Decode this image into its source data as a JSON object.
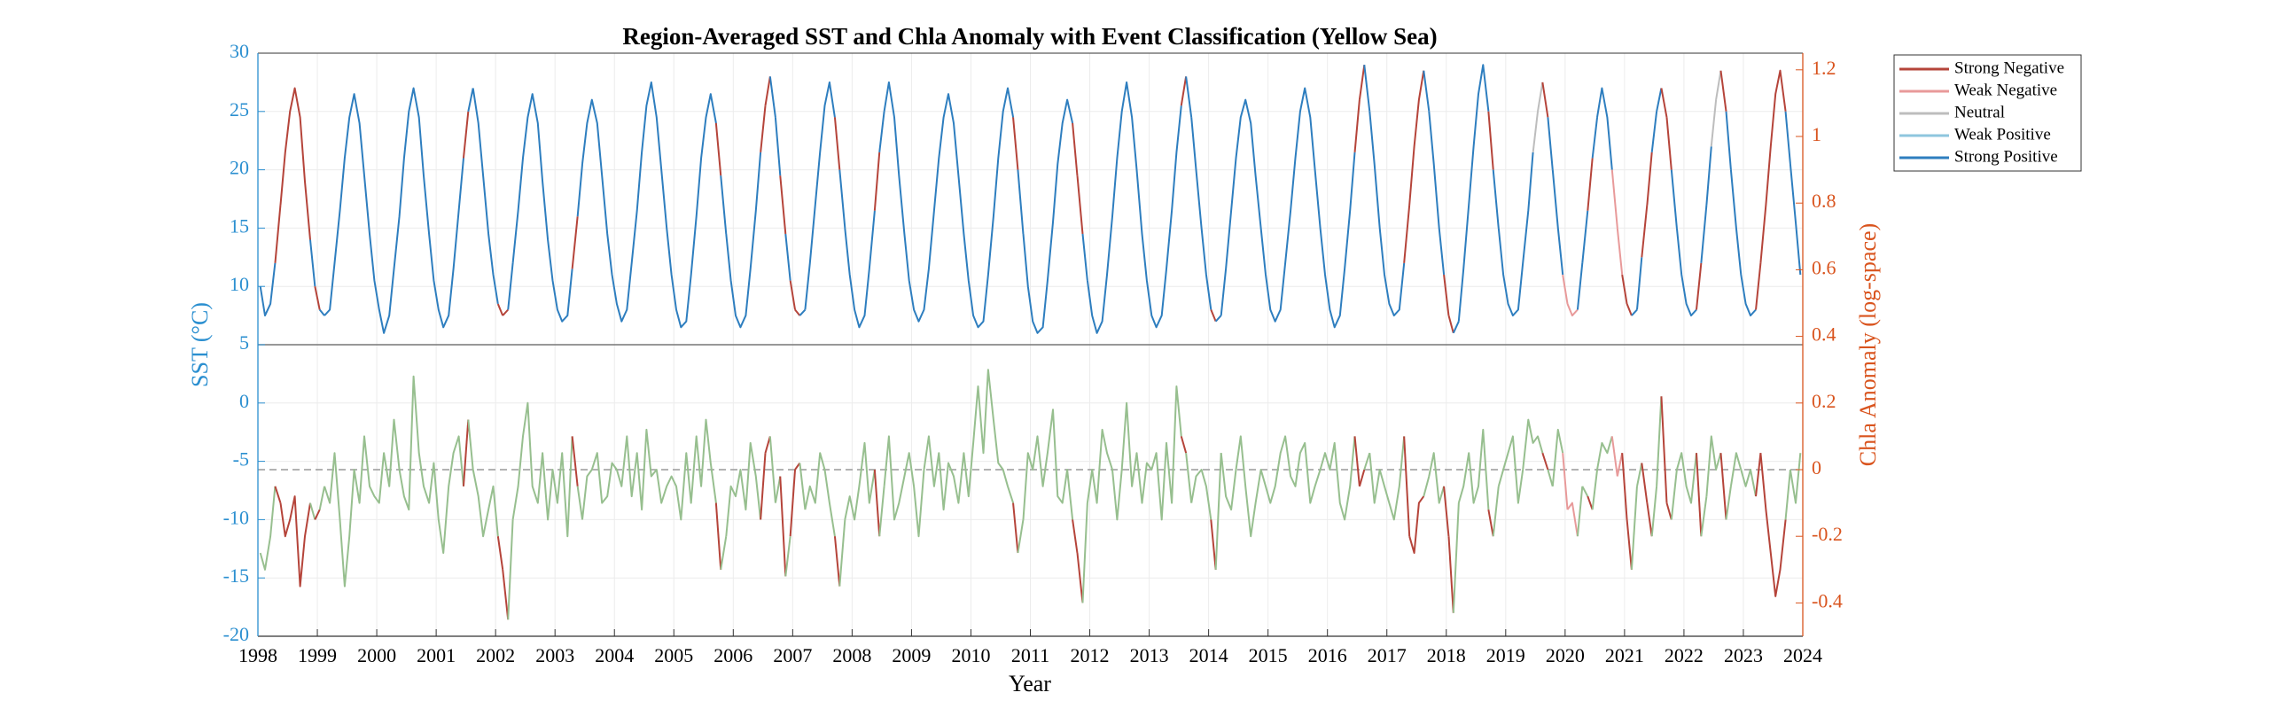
{
  "chart_data": {
    "type": "line",
    "title": "Region-Averaged SST and Chla Anomaly with Event Classification (Yellow Sea)",
    "x_label": "Year",
    "y_label": "SST (°C)",
    "y2_label": "Chla Anomaly (log-space)",
    "xlim": [
      1998,
      2024
    ],
    "xticks": [
      1998,
      1999,
      2000,
      2001,
      2002,
      2003,
      2004,
      2005,
      2006,
      2007,
      2008,
      2009,
      2010,
      2011,
      2012,
      2013,
      2014,
      2015,
      2016,
      2017,
      2018,
      2019,
      2020,
      2021,
      2022,
      2023,
      2024
    ],
    "ylim": [
      -20,
      30
    ],
    "yticks": [
      -20,
      -15,
      -10,
      -5,
      0,
      5,
      10,
      15,
      20,
      25,
      30
    ],
    "y2lim": [
      -0.5,
      1.25
    ],
    "y2ticks": [
      -0.4,
      -0.2,
      0,
      0.2,
      0.4,
      0.6,
      0.8,
      1,
      1.2
    ],
    "grid": true,
    "legend_position": "outside-right",
    "y2_reference": 0,
    "panel_divider": 5,
    "legend": [
      {
        "name": "Strong Negative",
        "color": "#b5443a"
      },
      {
        "name": "Weak Negative",
        "color": "#e89a9a"
      },
      {
        "name": "Neutral",
        "color": "#bdbdbd"
      },
      {
        "name": "Weak Positive",
        "color": "#8ec6de"
      },
      {
        "name": "Strong Positive",
        "color": "#2e7ebf"
      }
    ],
    "x": [
      1998.04,
      1998.12,
      1998.21,
      1998.29,
      1998.38,
      1998.46,
      1998.54,
      1998.62,
      1998.71,
      1998.79,
      1998.88,
      1998.96,
      1999.04,
      1999.12,
      1999.21,
      1999.29,
      1999.38,
      1999.46,
      1999.54,
      1999.62,
      1999.71,
      1999.79,
      1999.88,
      1999.96,
      2000.04,
      2000.12,
      2000.21,
      2000.29,
      2000.38,
      2000.46,
      2000.54,
      2000.62,
      2000.71,
      2000.79,
      2000.88,
      2000.96,
      2001.04,
      2001.12,
      2001.21,
      2001.29,
      2001.38,
      2001.46,
      2001.54,
      2001.62,
      2001.71,
      2001.79,
      2001.88,
      2001.96,
      2002.04,
      2002.12,
      2002.21,
      2002.29,
      2002.38,
      2002.46,
      2002.54,
      2002.62,
      2002.71,
      2002.79,
      2002.88,
      2002.96,
      2003.04,
      2003.12,
      2003.21,
      2003.29,
      2003.38,
      2003.46,
      2003.54,
      2003.62,
      2003.71,
      2003.79,
      2003.88,
      2003.96,
      2004.04,
      2004.12,
      2004.21,
      2004.29,
      2004.38,
      2004.46,
      2004.54,
      2004.62,
      2004.71,
      2004.79,
      2004.88,
      2004.96,
      2005.04,
      2005.12,
      2005.21,
      2005.29,
      2005.38,
      2005.46,
      2005.54,
      2005.62,
      2005.71,
      2005.79,
      2005.88,
      2005.96,
      2006.04,
      2006.12,
      2006.21,
      2006.29,
      2006.38,
      2006.46,
      2006.54,
      2006.62,
      2006.71,
      2006.79,
      2006.88,
      2006.96,
      2007.04,
      2007.12,
      2007.21,
      2007.29,
      2007.38,
      2007.46,
      2007.54,
      2007.62,
      2007.71,
      2007.79,
      2007.88,
      2007.96,
      2008.04,
      2008.12,
      2008.21,
      2008.29,
      2008.38,
      2008.46,
      2008.54,
      2008.62,
      2008.71,
      2008.79,
      2008.88,
      2008.96,
      2009.04,
      2009.12,
      2009.21,
      2009.29,
      2009.38,
      2009.46,
      2009.54,
      2009.62,
      2009.71,
      2009.79,
      2009.88,
      2009.96,
      2010.04,
      2010.12,
      2010.21,
      2010.29,
      2010.38,
      2010.46,
      2010.54,
      2010.62,
      2010.71,
      2010.79,
      2010.88,
      2010.96,
      2011.04,
      2011.12,
      2011.21,
      2011.29,
      2011.38,
      2011.46,
      2011.54,
      2011.62,
      2011.71,
      2011.79,
      2011.88,
      2011.96,
      2012.04,
      2012.12,
      2012.21,
      2012.29,
      2012.38,
      2012.46,
      2012.54,
      2012.62,
      2012.71,
      2012.79,
      2012.88,
      2012.96,
      2013.04,
      2013.12,
      2013.21,
      2013.29,
      2013.38,
      2013.46,
      2013.54,
      2013.62,
      2013.71,
      2013.79,
      2013.88,
      2013.96,
      2014.04,
      2014.12,
      2014.21,
      2014.29,
      2014.38,
      2014.46,
      2014.54,
      2014.62,
      2014.71,
      2014.79,
      2014.88,
      2014.96,
      2015.04,
      2015.12,
      2015.21,
      2015.29,
      2015.38,
      2015.46,
      2015.54,
      2015.62,
      2015.71,
      2015.79,
      2015.88,
      2015.96,
      2016.04,
      2016.12,
      2016.21,
      2016.29,
      2016.38,
      2016.46,
      2016.54,
      2016.62,
      2016.71,
      2016.79,
      2016.88,
      2016.96,
      2017.04,
      2017.12,
      2017.21,
      2017.29,
      2017.38,
      2017.46,
      2017.54,
      2017.62,
      2017.71,
      2017.79,
      2017.88,
      2017.96,
      2018.04,
      2018.12,
      2018.21,
      2018.29,
      2018.38,
      2018.46,
      2018.54,
      2018.62,
      2018.71,
      2018.79,
      2018.88,
      2018.96,
      2019.04,
      2019.12,
      2019.21,
      2019.29,
      2019.38,
      2019.46,
      2019.54,
      2019.62,
      2019.71,
      2019.79,
      2019.88,
      2019.96,
      2020.04,
      2020.12,
      2020.21,
      2020.29,
      2020.38,
      2020.46,
      2020.54,
      2020.62,
      2020.71,
      2020.79,
      2020.88,
      2020.96,
      2021.04,
      2021.12,
      2021.21,
      2021.29,
      2021.38,
      2021.46,
      2021.54,
      2021.62,
      2021.71,
      2021.79,
      2021.88,
      2021.96,
      2022.04,
      2022.12,
      2022.21,
      2022.29,
      2022.38,
      2022.46,
      2022.54,
      2022.62,
      2022.71,
      2022.79,
      2022.88,
      2022.96,
      2023.04,
      2023.12,
      2023.21,
      2023.29,
      2023.38,
      2023.46,
      2023.54,
      2023.62,
      2023.71,
      2023.79,
      2023.88,
      2023.96
    ],
    "event_class": [
      4,
      4,
      4,
      4,
      0,
      0,
      0,
      0,
      0,
      0,
      0,
      4,
      0,
      4,
      4,
      4,
      4,
      4,
      4,
      4,
      4,
      4,
      4,
      4,
      4,
      4,
      4,
      4,
      4,
      4,
      4,
      4,
      4,
      4,
      4,
      4,
      4,
      4,
      4,
      4,
      4,
      4,
      0,
      4,
      4,
      4,
      4,
      4,
      4,
      0,
      0,
      4,
      4,
      4,
      4,
      4,
      4,
      4,
      4,
      4,
      4,
      4,
      4,
      4,
      0,
      4,
      4,
      4,
      4,
      4,
      4,
      4,
      4,
      4,
      4,
      4,
      4,
      4,
      4,
      4,
      4,
      4,
      4,
      4,
      4,
      4,
      4,
      4,
      4,
      4,
      4,
      4,
      4,
      0,
      4,
      4,
      4,
      4,
      4,
      4,
      4,
      4,
      0,
      0,
      4,
      4,
      0,
      4,
      0,
      0,
      4,
      4,
      4,
      4,
      4,
      4,
      4,
      0,
      4,
      4,
      4,
      4,
      4,
      4,
      4,
      0,
      4,
      4,
      4,
      4,
      4,
      4,
      4,
      4,
      4,
      4,
      4,
      4,
      4,
      4,
      4,
      4,
      4,
      4,
      4,
      4,
      4,
      4,
      4,
      4,
      4,
      4,
      4,
      0,
      4,
      4,
      4,
      4,
      4,
      4,
      4,
      4,
      4,
      4,
      4,
      0,
      0,
      4,
      4,
      4,
      4,
      4,
      4,
      4,
      4,
      4,
      4,
      4,
      4,
      4,
      4,
      4,
      4,
      4,
      4,
      4,
      4,
      0,
      4,
      4,
      4,
      4,
      4,
      0,
      4,
      4,
      4,
      4,
      4,
      4,
      4,
      4,
      4,
      4,
      4,
      4,
      4,
      4,
      4,
      4,
      4,
      4,
      4,
      4,
      4,
      4,
      4,
      4,
      4,
      4,
      4,
      4,
      0,
      0,
      4,
      4,
      4,
      4,
      4,
      4,
      4,
      4,
      0,
      0,
      0,
      0,
      4,
      4,
      4,
      4,
      0,
      0,
      4,
      4,
      4,
      4,
      4,
      4,
      4,
      0,
      4,
      4,
      4,
      4,
      4,
      4,
      4,
      4,
      2,
      2,
      0,
      4,
      4,
      4,
      1,
      1,
      1,
      4,
      4,
      0,
      4,
      4,
      4,
      4,
      1,
      1,
      0,
      0,
      4,
      4,
      0,
      0,
      4,
      4,
      0,
      0,
      4,
      4,
      4,
      4,
      4,
      0,
      4,
      4,
      2,
      2,
      0,
      4,
      4,
      4,
      4,
      4,
      4,
      0,
      0,
      0,
      0,
      0,
      0,
      4,
      4,
      4
    ],
    "series": [
      {
        "color": "#2e7ebf",
        "axis": "y",
        "class_colored": [
          0,
          1,
          2,
          3,
          4
        ],
        "values": [
          10,
          7.5,
          8.5,
          12,
          17,
          21.5,
          25,
          27,
          24.5,
          19,
          14,
          10,
          8,
          7.5,
          8,
          12,
          16.5,
          21,
          24.5,
          26.5,
          24,
          19.5,
          14.5,
          10.5,
          8,
          6,
          7.5,
          11.5,
          16,
          21,
          25,
          27,
          24.5,
          19.5,
          14.5,
          10.5,
          8,
          6.5,
          7.5,
          11.5,
          16.5,
          21,
          25,
          27,
          24,
          19.5,
          14.5,
          11,
          8.5,
          7.5,
          8,
          12,
          16.5,
          21,
          24.5,
          26.5,
          24,
          19,
          14,
          10.5,
          8,
          7,
          7.5,
          11.5,
          16,
          20.5,
          24,
          26,
          24,
          19.5,
          14.5,
          11,
          8.5,
          7,
          8,
          12,
          16.5,
          21.5,
          25.5,
          27.5,
          24.5,
          20,
          15,
          11,
          8,
          6.5,
          7,
          11,
          16,
          21,
          24.5,
          26.5,
          24,
          19.5,
          14.5,
          10.5,
          7.5,
          6.5,
          7.5,
          11.5,
          16.5,
          21.5,
          25.5,
          28,
          24.5,
          19.5,
          14.5,
          10.5,
          8,
          7.5,
          8,
          12,
          17,
          21.5,
          25.5,
          27.5,
          24.5,
          20,
          15,
          11,
          8,
          6.5,
          7.5,
          11.5,
          16.5,
          21.5,
          25,
          27.5,
          24.5,
          19.5,
          14.5,
          10.5,
          8,
          7,
          8,
          11.5,
          16.5,
          21,
          24.5,
          26.5,
          24,
          19.5,
          14.5,
          10.5,
          7.5,
          6.5,
          7,
          11,
          16,
          21,
          25,
          27,
          24.5,
          20,
          14.5,
          10,
          7,
          6,
          6.5,
          10.5,
          15.5,
          20.5,
          24,
          26,
          24,
          19.5,
          14.5,
          10.5,
          7.5,
          6,
          7,
          11,
          16,
          21,
          25,
          27.5,
          24.5,
          20,
          14.5,
          10.5,
          7.5,
          6.5,
          7.5,
          11.5,
          16.5,
          21.5,
          25.5,
          28,
          24.5,
          20,
          15,
          11,
          8,
          7,
          7.5,
          11.5,
          16.5,
          21,
          24.5,
          26,
          24,
          19.5,
          15,
          11,
          8,
          7,
          8,
          12,
          16.5,
          21,
          25,
          27,
          24.5,
          20,
          15,
          11,
          8,
          6.5,
          7.5,
          11.5,
          16.5,
          21.5,
          26,
          29,
          25,
          20.5,
          15,
          11,
          8.5,
          7.5,
          8,
          12,
          17,
          22,
          26,
          28.5,
          25,
          20.5,
          15,
          11,
          7.5,
          6,
          7,
          11.5,
          17,
          22,
          26.5,
          29,
          25,
          20,
          15,
          11,
          8.5,
          7.5,
          8,
          12,
          16.5,
          21.5,
          25,
          27.5,
          24.5,
          20,
          15,
          11,
          8.5,
          7.5,
          8,
          12,
          16.5,
          21,
          24.5,
          27,
          24.5,
          20,
          15,
          11,
          8.5,
          7.5,
          8,
          12.5,
          17,
          21.5,
          25,
          27,
          24.5,
          20,
          15,
          11,
          8.5,
          7.5,
          8,
          12,
          17,
          22,
          26,
          28.5,
          25,
          20,
          15,
          11,
          8.5,
          7.5,
          8,
          12,
          17,
          22,
          26.5,
          28.5,
          25,
          20.5,
          15.5,
          11
        ]
      },
      {
        "color": "#97bf8f",
        "axis": "y2",
        "class_colored": [
          0,
          1
        ],
        "values": [
          -0.25,
          -0.3,
          -0.2,
          -0.05,
          -0.1,
          -0.2,
          -0.15,
          -0.08,
          -0.35,
          -0.2,
          -0.1,
          -0.15,
          -0.12,
          -0.05,
          -0.1,
          0.05,
          -0.15,
          -0.35,
          -0.2,
          0,
          -0.1,
          0.1,
          -0.05,
          -0.08,
          -0.1,
          0.05,
          -0.05,
          0.15,
          0,
          -0.08,
          -0.12,
          0.28,
          0.05,
          -0.05,
          -0.1,
          0.02,
          -0.15,
          -0.25,
          -0.05,
          0.05,
          0.1,
          -0.05,
          0.15,
          0,
          -0.08,
          -0.2,
          -0.12,
          -0.05,
          -0.2,
          -0.3,
          -0.45,
          -0.15,
          -0.05,
          0.1,
          0.2,
          -0.05,
          -0.1,
          0.05,
          -0.15,
          0,
          -0.1,
          0.05,
          -0.2,
          0.1,
          -0.05,
          -0.15,
          -0.02,
          0,
          0.05,
          -0.1,
          -0.08,
          0.02,
          0,
          -0.05,
          0.1,
          -0.08,
          0.05,
          -0.12,
          0.12,
          -0.02,
          0,
          -0.1,
          -0.05,
          -0.02,
          -0.05,
          -0.15,
          0.05,
          -0.1,
          0.1,
          -0.05,
          0.15,
          0.02,
          -0.1,
          -0.3,
          -0.2,
          -0.05,
          -0.08,
          0,
          -0.12,
          0.08,
          -0.02,
          -0.15,
          0.05,
          0.1,
          -0.1,
          -0.02,
          -0.32,
          -0.2,
          0,
          0.02,
          -0.12,
          -0.05,
          -0.1,
          0.05,
          0,
          -0.1,
          -0.2,
          -0.35,
          -0.15,
          -0.08,
          -0.15,
          -0.05,
          0.08,
          -0.1,
          0,
          -0.2,
          -0.05,
          0.1,
          -0.15,
          -0.1,
          -0.02,
          0.05,
          -0.05,
          -0.2,
          0,
          0.1,
          -0.05,
          0.05,
          -0.12,
          0.02,
          -0.02,
          -0.1,
          0.05,
          -0.08,
          0.08,
          0.25,
          0.05,
          0.3,
          0.15,
          0.02,
          0,
          -0.05,
          -0.1,
          -0.25,
          -0.15,
          0.05,
          0,
          0.1,
          -0.05,
          0.05,
          0.18,
          -0.08,
          -0.1,
          0,
          -0.15,
          -0.25,
          -0.4,
          -0.1,
          0,
          -0.1,
          0.12,
          0.05,
          0,
          -0.15,
          0,
          0.2,
          -0.05,
          0.05,
          -0.1,
          0.02,
          0,
          0.05,
          -0.15,
          0.08,
          -0.1,
          0.25,
          0.1,
          0.05,
          -0.1,
          -0.02,
          0,
          -0.05,
          -0.15,
          -0.3,
          0.05,
          -0.08,
          -0.12,
          0,
          0.1,
          -0.05,
          -0.2,
          -0.1,
          0,
          -0.05,
          -0.1,
          -0.05,
          0.05,
          0.1,
          -0.02,
          -0.05,
          0.05,
          0.08,
          -0.1,
          -0.05,
          0,
          0.05,
          0,
          0.08,
          -0.1,
          -0.15,
          -0.05,
          0.1,
          -0.05,
          0,
          0.05,
          -0.1,
          0,
          -0.05,
          -0.1,
          -0.15,
          -0.05,
          0.1,
          -0.2,
          -0.25,
          -0.1,
          -0.08,
          -0.02,
          0.05,
          -0.1,
          -0.05,
          -0.2,
          -0.43,
          -0.1,
          -0.05,
          0.05,
          -0.1,
          -0.05,
          0.12,
          -0.12,
          -0.2,
          -0.05,
          0,
          0.05,
          0.1,
          -0.1,
          0,
          0.15,
          0.08,
          0.1,
          0.05,
          0,
          -0.05,
          0.12,
          0.05,
          -0.12,
          -0.1,
          -0.2,
          -0.05,
          -0.08,
          -0.12,
          0,
          0.08,
          0.05,
          0.1,
          -0.02,
          0.05,
          -0.15,
          -0.3,
          -0.05,
          0.02,
          -0.1,
          -0.2,
          -0.05,
          0.22,
          -0.1,
          -0.15,
          0,
          0.05,
          -0.05,
          -0.1,
          0.05,
          -0.2,
          -0.08,
          0.1,
          0,
          0.05,
          -0.15,
          -0.05,
          0.05,
          0,
          -0.05,
          0,
          -0.08,
          0.05,
          -0.12,
          -0.25,
          -0.38,
          -0.3,
          -0.15,
          0,
          -0.1,
          0.05
        ]
      }
    ]
  }
}
